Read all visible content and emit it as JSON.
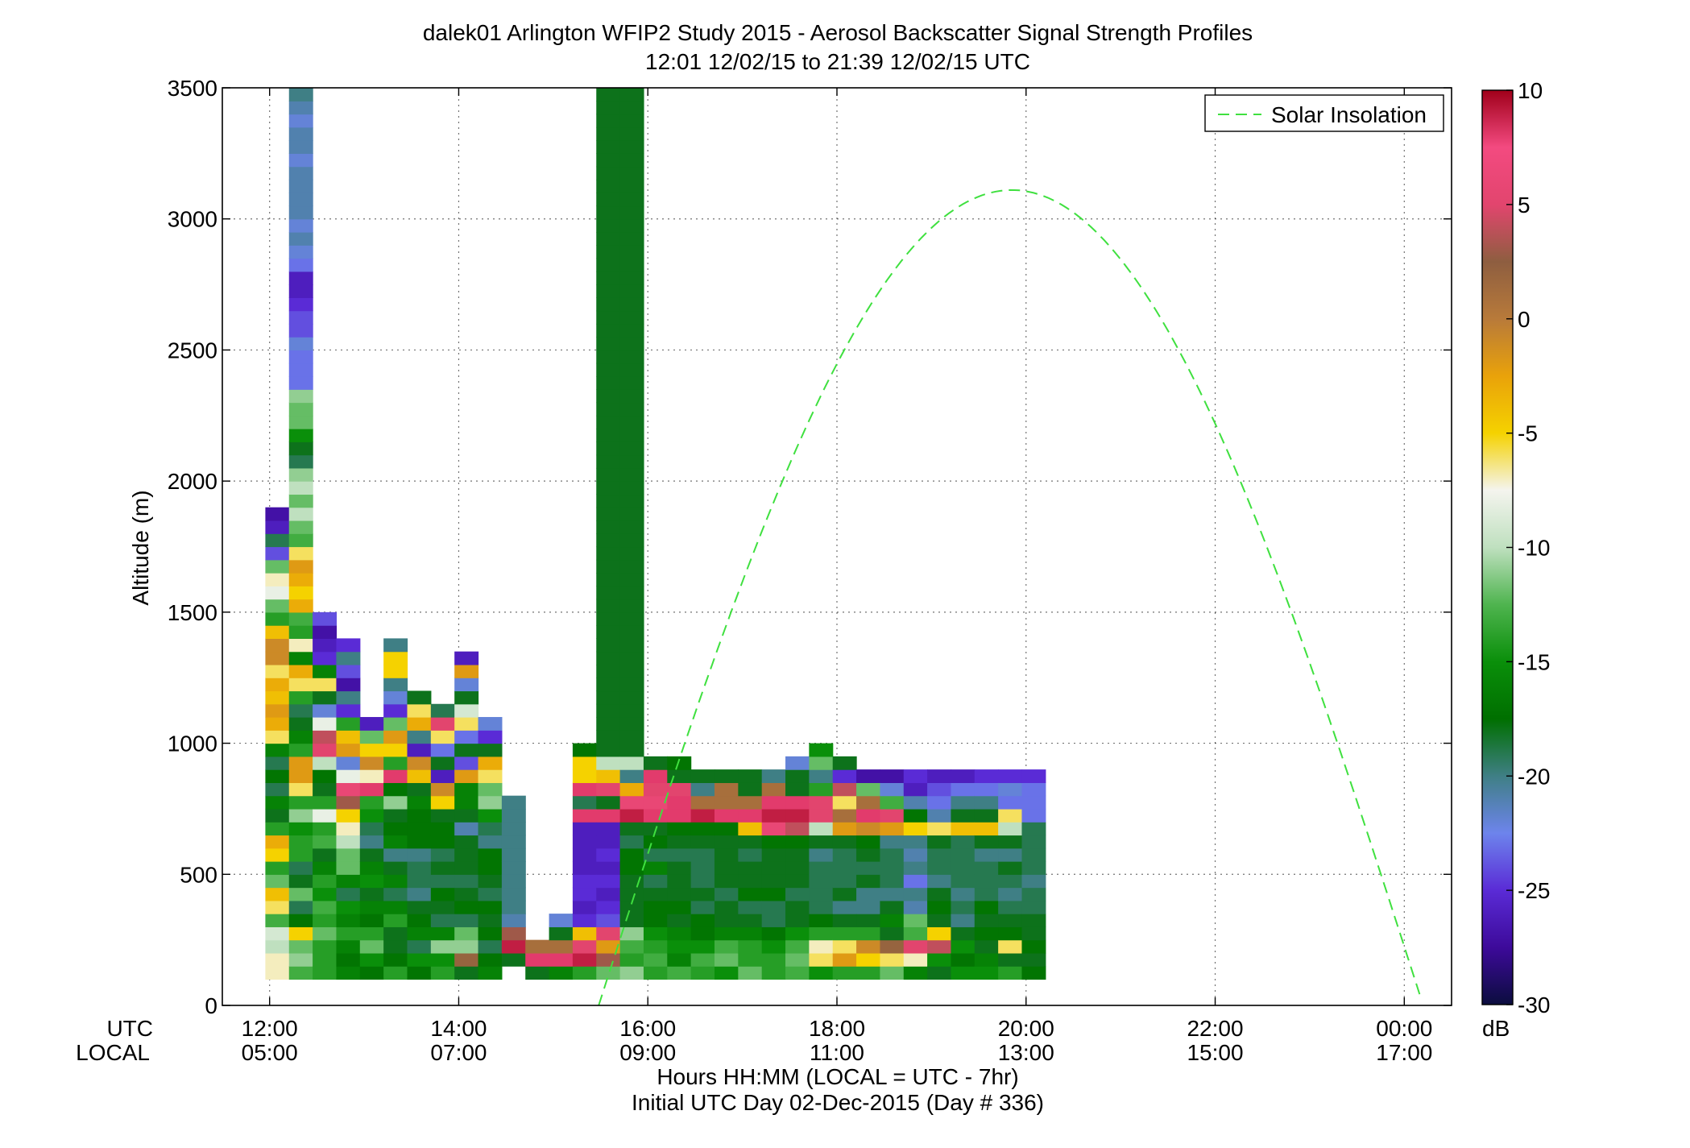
{
  "chart_data": {
    "type": "heatmap",
    "title": "dalek01 Arlington WFIP2 Study 2015 - Aerosol Backscatter Signal Strength Profiles",
    "subtitle": "12:01 12/02/15 to 21:39 12/02/15  UTC",
    "xlabel": "Hours HH:MM  (LOCAL = UTC - 7hr)",
    "xlabel2": "Initial UTC Day 02-Dec-2015 (Day # 336)",
    "ylabel": "Altitude (m)",
    "row_labels": [
      "UTC",
      "LOCAL"
    ],
    "x_ticks_utc": [
      "12:00",
      "14:00",
      "16:00",
      "18:00",
      "20:00",
      "22:00",
      "00:00"
    ],
    "x_ticks_local": [
      "05:00",
      "07:00",
      "09:00",
      "11:00",
      "13:00",
      "15:00",
      "17:00"
    ],
    "x_tick_hours": [
      12,
      14,
      16,
      18,
      20,
      22,
      24
    ],
    "xlim_hours": [
      11.5,
      24.5
    ],
    "y_ticks": [
      "3500",
      "3000",
      "2500",
      "2000",
      "1500",
      "1000",
      "500",
      "0"
    ],
    "ylim": [
      0,
      3500
    ],
    "grid": true,
    "cell_height_m": 50,
    "cell_width_hours": 0.25,
    "colorbar": {
      "label": "dB",
      "range": [
        -30,
        10
      ],
      "ticks": [
        "10",
        "5",
        "0",
        "-5",
        "-10",
        "-15",
        "-20",
        "-25",
        "-30"
      ],
      "colors": [
        "#0b0d3e",
        "#3d0a9a",
        "#5a2bd6",
        "#6d84ec",
        "#3f7f85",
        "#006f00",
        "#0a8f0a",
        "#4fb44f",
        "#bfe0bf",
        "#f4f4ee",
        "#f5d200",
        "#e9a20a",
        "#b87a3a",
        "#8e5e40",
        "#e2456e",
        "#f34a80",
        "#a0001a"
      ]
    },
    "legend": {
      "entries": [
        "Solar Insolation"
      ],
      "position": "top-right",
      "color": "#3fe03f"
    },
    "solar_curve": {
      "start_hour": 15.48,
      "peak_hour": 19.85,
      "end_hour": 24.2,
      "peak_altitude": 3110
    },
    "columns": [
      {
        "t": 12.08,
        "h0": 100,
        "v": [
          -7,
          -7,
          -10,
          -9,
          -13,
          -6,
          -4,
          -12,
          -14,
          -5,
          -3,
          -14,
          -18,
          -16,
          -19,
          -17,
          -19,
          -16,
          -6,
          -3,
          -2,
          -4,
          -3,
          -6,
          -1,
          -1,
          -4,
          -14,
          -12,
          -8,
          -7,
          -12,
          -24,
          -19,
          -26,
          -27
        ]
      },
      {
        "t": 12.33,
        "h0": 100,
        "v": [
          -13,
          -11,
          -12,
          -5,
          -17,
          -19,
          -12,
          -18,
          -19,
          -14,
          -14,
          -15,
          -11,
          -14,
          -6,
          -2,
          -2,
          -14,
          -16,
          -18,
          -19,
          -14,
          -6,
          -3,
          -16,
          -7,
          -14,
          -13,
          -3,
          -5,
          -3,
          -2,
          -6,
          -13,
          -12,
          -10,
          -12,
          -10,
          -11,
          -19,
          -18,
          -15,
          -12,
          -12,
          -11,
          -23,
          -23,
          -23,
          -22,
          -24,
          -24,
          -25,
          -26,
          -26,
          -23,
          -22,
          -21,
          -22,
          -21,
          -21,
          -21,
          -21,
          -22,
          -21,
          -21,
          -22,
          -21,
          -20
        ]
      },
      {
        "t": 12.58,
        "h0": 100,
        "v": [
          -14,
          -14,
          -14,
          -12,
          -14,
          -13,
          -15,
          -14,
          -16,
          -18,
          -13,
          -14,
          -8,
          -14,
          -18,
          -17,
          -10,
          5,
          4,
          -8,
          -22,
          -18,
          -6,
          -16,
          -25,
          -26,
          -27,
          -24
        ]
      },
      {
        "t": 12.83,
        "h0": 100,
        "v": [
          -16,
          -17,
          -16,
          -14,
          -16,
          -15,
          -19,
          -16,
          -12,
          -12,
          -10,
          -7,
          -5,
          3,
          6,
          -8,
          -22,
          -2,
          -4,
          -14,
          -25,
          -20,
          -27,
          -24,
          -20,
          -25
        ]
      },
      {
        "t": 13.08,
        "h0": 100,
        "v": [
          -17,
          -15,
          -12,
          -14,
          -17,
          -16,
          -18,
          -15,
          -16,
          -18,
          -20,
          -19,
          -15,
          -14,
          8,
          -7,
          -1,
          -5,
          -12,
          -26
        ]
      },
      {
        "t": 13.33,
        "h0": 100,
        "v": [
          -14,
          -17,
          -18,
          -18,
          -14,
          -16,
          -19,
          -16,
          -18,
          -20,
          -16,
          -17,
          -18,
          -11,
          -17,
          8,
          -14,
          -5,
          -2,
          -12,
          -25,
          -22,
          -20,
          -5,
          -5,
          -20
        ]
      },
      {
        "t": 13.58,
        "h0": 100,
        "v": [
          -17,
          -15,
          -19,
          -16,
          -17,
          -18,
          -20,
          -19,
          -19,
          -20,
          -17,
          -17,
          -17,
          -16,
          -18,
          -4,
          -1,
          -26,
          -20,
          -3,
          -6,
          -18
        ]
      },
      {
        "t": 13.83,
        "h0": 100,
        "v": [
          -14,
          -15,
          -11,
          -16,
          -19,
          -18,
          -17,
          -19,
          -18,
          -19,
          -17,
          -17,
          -18,
          -5,
          -1,
          -26,
          -18,
          -23,
          -6,
          5,
          -19
        ]
      },
      {
        "t": 14.08,
        "h0": 100,
        "v": [
          -18,
          2,
          -11,
          -12,
          -19,
          -17,
          -18,
          -19,
          -18,
          -18,
          -18,
          -21,
          -18,
          -16,
          -16,
          -2,
          -24,
          -18,
          -23,
          -6,
          -9,
          -18,
          -22,
          -2,
          -26
        ]
      },
      {
        "t": 14.33,
        "h0": 100,
        "v": [
          -16,
          -17,
          -19,
          -17,
          -18,
          -17,
          -19,
          -18,
          -17,
          -17,
          -20,
          -19,
          -15,
          -11,
          -12,
          -6,
          -3,
          -18,
          -25,
          -22
        ]
      },
      {
        "t": 14.58,
        "h0": 150,
        "v": [
          -18,
          9,
          3,
          -21,
          -20,
          -20,
          -20,
          -20,
          -20,
          -20,
          -20,
          -20,
          -20
        ]
      },
      {
        "t": 14.83,
        "h0": 100,
        "v": [
          -18,
          8,
          1
        ]
      },
      {
        "t": 15.08,
        "h0": 100,
        "v": [
          -16,
          8,
          1,
          -18,
          -22
        ]
      },
      {
        "t": 15.33,
        "h0": 100,
        "v": [
          -14,
          9,
          5,
          -4,
          -25,
          -26,
          -25,
          -25,
          -26,
          -26,
          -26,
          -26,
          8,
          -19,
          8,
          -5,
          -5,
          -17
        ]
      },
      {
        "t": 15.58,
        "h0": 100,
        "v": [
          -12,
          3,
          -2,
          5,
          -24,
          -25,
          -26,
          -25,
          -26,
          -25,
          -26,
          -26,
          8,
          -18,
          5,
          -4,
          -10,
          -18,
          -18,
          -18,
          -18,
          -18,
          -18,
          -18,
          -18,
          -18,
          -18,
          -18,
          -18,
          -18,
          -18,
          -18,
          -18,
          -18,
          -18,
          -18,
          -18,
          -18,
          -18,
          -18,
          -18,
          -18,
          -18,
          -18,
          -18,
          -18,
          -18,
          -18,
          -18,
          -18,
          -18,
          -18,
          -18,
          -18,
          -18,
          -18,
          -18,
          -18,
          -18,
          -18,
          -18,
          -18,
          -18,
          -18,
          -18,
          -18,
          -18,
          -18,
          -18
        ]
      },
      {
        "t": 15.83,
        "h0": 100,
        "v": [
          -11,
          -14,
          -13,
          -11,
          -18,
          -18,
          -18,
          -18,
          -17,
          -17,
          -19,
          -18,
          9,
          6,
          -3,
          -20,
          -10,
          -18,
          -18,
          -18,
          -18,
          -18,
          -18,
          -18,
          -18,
          -18,
          -18,
          -18,
          -18,
          -18,
          -18,
          -18,
          -18,
          -18,
          -18,
          -18,
          -18,
          -18,
          -18,
          -18,
          -18,
          -18,
          -18,
          -18,
          -18,
          -18,
          -18,
          -18,
          -18,
          -18,
          -18,
          -18,
          -18,
          -18,
          -18,
          -18,
          -18,
          -18,
          -18,
          -18,
          -18,
          -18,
          -18,
          -18,
          -18,
          -18,
          -18,
          -18,
          -18
        ]
      },
      {
        "t": 16.08,
        "h0": 100,
        "v": [
          -14,
          -13,
          -14,
          -15,
          -17,
          -17,
          -18,
          -19,
          -16,
          -19,
          -17,
          -18,
          8,
          6,
          5,
          8,
          -18
        ]
      },
      {
        "t": 16.33,
        "h0": 100,
        "v": [
          -13,
          -16,
          -15,
          -16,
          -18,
          -17,
          -18,
          -18,
          -18,
          -19,
          -18,
          -17,
          8,
          8,
          5,
          -18,
          -17
        ]
      },
      {
        "t": 16.58,
        "h0": 100,
        "v": [
          -14,
          -13,
          -15,
          -17,
          -17,
          -19,
          -18,
          -19,
          -19,
          -19,
          -18,
          -17,
          9,
          1,
          -20,
          -18
        ]
      },
      {
        "t": 16.83,
        "h0": 100,
        "v": [
          -15,
          -12,
          -13,
          -16,
          -18,
          -18,
          -19,
          -18,
          -18,
          -18,
          -18,
          -17,
          8,
          1,
          1,
          -18
        ]
      },
      {
        "t": 17.08,
        "h0": 100,
        "v": [
          -12,
          -14,
          -14,
          -16,
          -18,
          -19,
          -17,
          -18,
          -18,
          -19,
          -18,
          -4,
          8,
          1,
          -18,
          -18
        ]
      },
      {
        "t": 17.33,
        "h0": 100,
        "v": [
          -14,
          -14,
          -15,
          -17,
          -19,
          -19,
          -17,
          -18,
          -18,
          -18,
          -17,
          6,
          9,
          8,
          1,
          -20
        ]
      },
      {
        "t": 17.58,
        "h0": 100,
        "v": [
          -13,
          -12,
          -13,
          -15,
          -18,
          -18,
          -19,
          -18,
          -18,
          -18,
          -17,
          4,
          9,
          8,
          -18,
          -18,
          -22
        ]
      },
      {
        "t": 17.83,
        "h0": 100,
        "v": [
          -15,
          -6,
          -7,
          -14,
          -17,
          -19,
          -19,
          -19,
          -19,
          -20,
          -18,
          -10,
          5,
          5,
          -14,
          -20,
          -12,
          -15
        ]
      },
      {
        "t": 18.08,
        "h0": 100,
        "v": [
          -14,
          -2,
          -6,
          -14,
          -18,
          -20,
          -18,
          -19,
          -19,
          -19,
          -18,
          -2,
          1,
          -6,
          4,
          -25,
          -18
        ]
      },
      {
        "t": 18.33,
        "h0": 100,
        "v": [
          -14,
          -5,
          -1,
          -14,
          -18,
          -20,
          -20,
          -18,
          -19,
          -18,
          -17,
          -1,
          8,
          1,
          -12,
          -27
        ]
      },
      {
        "t": 18.58,
        "h0": 100,
        "v": [
          -12,
          -6,
          2,
          -18,
          -16,
          -18,
          -20,
          -19,
          -19,
          -19,
          -20,
          -2,
          5,
          -13,
          -22,
          -27
        ]
      },
      {
        "t": 18.83,
        "h0": 100,
        "v": [
          -16,
          -7,
          5,
          -13,
          -12,
          -21,
          -20,
          -23,
          -20,
          -21,
          -20,
          -5,
          -17,
          -21,
          -26,
          -25
        ]
      },
      {
        "t": 19.08,
        "h0": 100,
        "v": [
          -18,
          -15,
          4,
          -5,
          -18,
          -17,
          -18,
          -20,
          -19,
          -19,
          -18,
          -6,
          -21,
          -23,
          -24,
          -26
        ]
      },
      {
        "t": 19.33,
        "h0": 100,
        "v": [
          -15,
          -17,
          -15,
          -18,
          -20,
          -19,
          -20,
          -19,
          -19,
          -19,
          -19,
          -4,
          -18,
          -20,
          -23,
          -26
        ]
      },
      {
        "t": 19.58,
        "h0": 100,
        "v": [
          -15,
          -16,
          -18,
          -17,
          -18,
          -17,
          -19,
          -19,
          -19,
          -20,
          -18,
          -4,
          -18,
          -20,
          -23,
          -25
        ]
      },
      {
        "t": 19.83,
        "h0": 100,
        "v": [
          -14,
          -18,
          -6,
          -17,
          -18,
          -19,
          -20,
          -19,
          -18,
          -20,
          -18,
          -10,
          -6,
          -23,
          -22,
          -25
        ]
      },
      {
        "t": 20.08,
        "h0": 100,
        "v": [
          -17,
          -18,
          -17,
          -18,
          -18,
          -19,
          -19,
          -20,
          -19,
          -19,
          -19,
          -19,
          -23,
          -23,
          -23,
          -25
        ]
      }
    ]
  }
}
